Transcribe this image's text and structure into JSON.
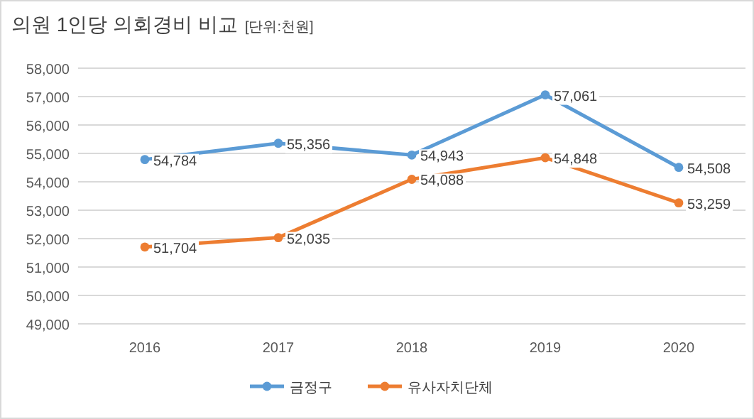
{
  "chart_data": {
    "type": "line",
    "title": "의원 1인당 의회경비 비교",
    "subtitle": "[단위:천원]",
    "categories": [
      "2016",
      "2017",
      "2018",
      "2019",
      "2020"
    ],
    "series": [
      {
        "name": "금정구",
        "color": "#5b9bd5",
        "values": [
          54784,
          55356,
          54943,
          57061,
          54508
        ],
        "value_labels": [
          "54,784",
          "55,356",
          "54,943",
          "57,061",
          "54,508"
        ]
      },
      {
        "name": "유사자치단체",
        "color": "#ed7d31",
        "values": [
          51704,
          52035,
          54088,
          54848,
          53259
        ],
        "value_labels": [
          "51,704",
          "52,035",
          "54,088",
          "54,848",
          "53,259"
        ]
      }
    ],
    "ylim": [
      49000,
      58000
    ],
    "yticks": [
      {
        "value": 49000,
        "label": "49,000"
      },
      {
        "value": 50000,
        "label": "50,000"
      },
      {
        "value": 51000,
        "label": "51,000"
      },
      {
        "value": 52000,
        "label": "52,000"
      },
      {
        "value": 53000,
        "label": "53,000"
      },
      {
        "value": 54000,
        "label": "54,000"
      },
      {
        "value": 55000,
        "label": "55,000"
      },
      {
        "value": 56000,
        "label": "56,000"
      },
      {
        "value": 57000,
        "label": "57,000"
      },
      {
        "value": 58000,
        "label": "58,000"
      }
    ],
    "grid": "y",
    "legend": "bottom",
    "marker": "circle",
    "line_style": "solid"
  }
}
